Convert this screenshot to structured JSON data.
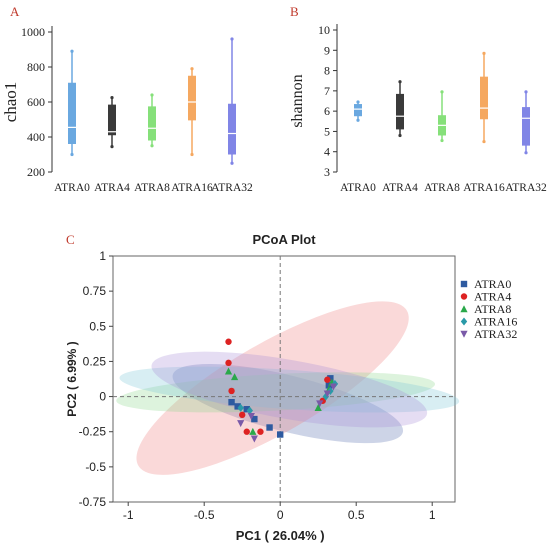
{
  "panels": {
    "a": "A",
    "b": "B",
    "c": "C"
  },
  "chart_data": [
    {
      "type": "box",
      "ylabel": "chao1",
      "ylim": [
        200,
        1000
      ],
      "yticks": [
        200,
        400,
        600,
        800,
        1000
      ],
      "categories": [
        "ATRA0",
        "ATRA4",
        "ATRA8",
        "ATRA16",
        "ATRA32"
      ],
      "colors": [
        "#6aa8e0",
        "#3a3a3a",
        "#86e07a",
        "#f5a860",
        "#8085e6"
      ],
      "boxes": [
        {
          "min": 300,
          "q1": 360,
          "median": 455,
          "q3": 710,
          "max": 890
        },
        {
          "min": 345,
          "q1": 410,
          "median": 430,
          "q3": 585,
          "max": 625
        },
        {
          "min": 350,
          "q1": 380,
          "median": 450,
          "q3": 575,
          "max": 640
        },
        {
          "min": 300,
          "q1": 495,
          "median": 600,
          "q3": 750,
          "max": 790
        },
        {
          "min": 250,
          "q1": 300,
          "median": 420,
          "q3": 590,
          "max": 960
        }
      ]
    },
    {
      "type": "box",
      "ylabel": "shannon",
      "ylim": [
        3,
        10
      ],
      "yticks": [
        3,
        4,
        5,
        6,
        7,
        8,
        9,
        10
      ],
      "categories": [
        "ATRA0",
        "ATRA4",
        "ATRA8",
        "ATRA16",
        "ATRA32"
      ],
      "colors": [
        "#6aa8e0",
        "#3a3a3a",
        "#86e07a",
        "#f5a860",
        "#8085e6"
      ],
      "boxes": [
        {
          "min": 5.55,
          "q1": 5.75,
          "median": 6.1,
          "q3": 6.35,
          "max": 6.45
        },
        {
          "min": 4.8,
          "q1": 5.1,
          "median": 5.75,
          "q3": 6.85,
          "max": 7.45
        },
        {
          "min": 4.55,
          "q1": 4.8,
          "median": 5.3,
          "q3": 5.8,
          "max": 6.95
        },
        {
          "min": 4.5,
          "q1": 5.6,
          "median": 6.15,
          "q3": 7.7,
          "max": 8.85
        },
        {
          "min": 3.95,
          "q1": 4.3,
          "median": 5.65,
          "q3": 6.2,
          "max": 6.95
        }
      ]
    },
    {
      "type": "scatter",
      "title": "PCoA Plot",
      "xlabel": "PC1 ( 26.04% )",
      "ylabel": "PC2 ( 6.99% )",
      "xlim": [
        -1.1,
        1.15
      ],
      "ylim": [
        -0.75,
        1.0
      ],
      "xticks": [
        -1,
        -0.5,
        0,
        0.5,
        1
      ],
      "yticks": [
        -0.75,
        -0.5,
        -0.25,
        0,
        0.25,
        0.5,
        0.75,
        1
      ],
      "series": [
        {
          "name": "ATRA0",
          "color": "#2e5aa0",
          "marker": "square",
          "points": [
            [
              -0.32,
              -0.04
            ],
            [
              -0.28,
              -0.07
            ],
            [
              -0.22,
              -0.09
            ],
            [
              -0.17,
              -0.16
            ],
            [
              -0.07,
              -0.22
            ],
            [
              0.0,
              -0.27
            ],
            [
              0.33,
              0.13
            ],
            [
              0.32,
              0.08
            ]
          ]
        },
        {
          "name": "ATRA4",
          "color": "#dd2222",
          "marker": "circle",
          "points": [
            [
              -0.34,
              0.39
            ],
            [
              -0.34,
              0.24
            ],
            [
              -0.32,
              0.04
            ],
            [
              -0.25,
              -0.13
            ],
            [
              -0.22,
              -0.25
            ],
            [
              -0.13,
              -0.25
            ],
            [
              0.28,
              -0.03
            ],
            [
              0.31,
              0.12
            ]
          ]
        },
        {
          "name": "ATRA8",
          "color": "#2aa84a",
          "marker": "triangle-up",
          "points": [
            [
              -0.34,
              0.18
            ],
            [
              -0.3,
              0.14
            ],
            [
              -0.18,
              -0.25
            ],
            [
              0.25,
              -0.08
            ],
            [
              0.32,
              0.05
            ],
            [
              0.34,
              0.1
            ]
          ]
        },
        {
          "name": "ATRA16",
          "color": "#2a9aa8",
          "marker": "diamond",
          "points": [
            [
              -0.26,
              -0.08
            ],
            [
              -0.2,
              -0.1
            ],
            [
              0.3,
              0.0
            ],
            [
              0.33,
              0.04
            ],
            [
              0.36,
              0.09
            ]
          ]
        },
        {
          "name": "ATRA32",
          "color": "#7a5aa8",
          "marker": "triangle-down",
          "points": [
            [
              -0.26,
              -0.19
            ],
            [
              -0.19,
              -0.14
            ],
            [
              -0.17,
              -0.3
            ],
            [
              0.26,
              -0.05
            ],
            [
              0.31,
              0.02
            ],
            [
              0.35,
              0.07
            ]
          ]
        }
      ],
      "ellipses": [
        {
          "series": "ATRA0",
          "color": "#5a6fb0",
          "cx": 0.05,
          "cy": -0.05,
          "rx": 0.78,
          "ry": 0.2,
          "angle": 14
        },
        {
          "series": "ATRA4",
          "color": "#f08080",
          "cx": -0.05,
          "cy": 0.06,
          "rx": 1.02,
          "ry": 0.32,
          "angle": -30
        },
        {
          "series": "ATRA8",
          "color": "#8fd88f",
          "cx": -0.03,
          "cy": 0.03,
          "rx": 1.05,
          "ry": 0.13,
          "angle": -3
        },
        {
          "series": "ATRA16",
          "color": "#7fc6d8",
          "cx": 0.06,
          "cy": 0.05,
          "rx": 1.12,
          "ry": 0.14,
          "angle": 4
        },
        {
          "series": "ATRA32",
          "color": "#a98fd8",
          "cx": 0.06,
          "cy": 0.05,
          "rx": 0.92,
          "ry": 0.21,
          "angle": 10
        }
      ]
    }
  ]
}
